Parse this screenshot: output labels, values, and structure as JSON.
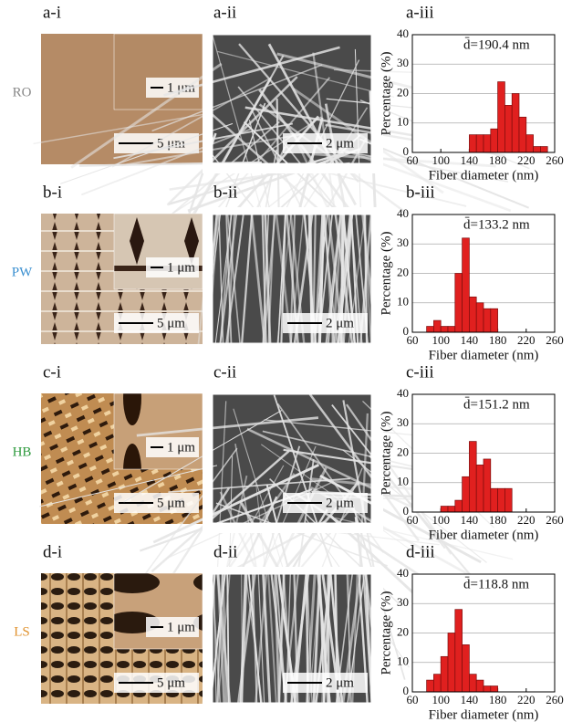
{
  "rows": [
    {
      "row_label": "RO",
      "label_color": "#888888",
      "panels": [
        {
          "label": "a-i",
          "inset_scale": "1 μm",
          "scale": "5 μm"
        },
        {
          "label": "a-ii",
          "scale": "2 μm"
        }
      ]
    },
    {
      "row_label": "PW",
      "label_color": "#3a8fd0",
      "panels": [
        {
          "label": "b-i",
          "inset_scale": "1 μm",
          "scale": "5 μm"
        },
        {
          "label": "b-ii",
          "scale": "2 μm"
        }
      ]
    },
    {
      "row_label": "HB",
      "label_color": "#2e9a3e",
      "panels": [
        {
          "label": "c-i",
          "inset_scale": "1 μm",
          "scale": "5 μm"
        },
        {
          "label": "c-ii",
          "scale": "2 μm"
        }
      ]
    },
    {
      "row_label": "LS",
      "label_color": "#e0922e",
      "panels": [
        {
          "label": "d-i",
          "inset_scale": "1 μm",
          "scale": "5 μm"
        },
        {
          "label": "d-ii",
          "scale": "2 μm"
        }
      ]
    }
  ],
  "chart_data": [
    {
      "type": "histogram",
      "panel_label": "a-iii",
      "annotation": "d̄=190.4 nm",
      "xlabel": "Fiber diameter (nm)",
      "ylabel": "Percentage (%)",
      "bins": [
        140,
        150,
        160,
        170,
        180,
        190,
        200,
        210,
        220,
        230,
        240,
        250
      ],
      "values": [
        6,
        6,
        6,
        8,
        24,
        16,
        20,
        12,
        6,
        2,
        2
      ],
      "color": "#e0201f",
      "xlim": [
        60,
        260
      ],
      "xticks": [
        60,
        100,
        140,
        180,
        220,
        260
      ],
      "ylim": [
        0,
        40
      ],
      "yticks": [
        0,
        10,
        20,
        30,
        40
      ],
      "grid": true
    },
    {
      "type": "histogram",
      "panel_label": "b-iii",
      "annotation": "d̄=133.2 nm",
      "xlabel": "Fiber diameter (nm)",
      "ylabel": "Percentage (%)",
      "bins": [
        80,
        90,
        100,
        110,
        120,
        130,
        140,
        150,
        160,
        170,
        180
      ],
      "values": [
        2,
        4,
        2,
        2,
        20,
        32,
        12,
        10,
        8,
        8
      ],
      "color": "#e0201f",
      "xlim": [
        60,
        260
      ],
      "xticks": [
        60,
        100,
        140,
        180,
        220,
        260
      ],
      "ylim": [
        0,
        40
      ],
      "yticks": [
        0,
        10,
        20,
        30,
        40
      ],
      "grid": true
    },
    {
      "type": "histogram",
      "panel_label": "c-iii",
      "annotation": "d̄=151.2 nm",
      "xlabel": "Fiber diameter (nm)",
      "ylabel": "Percentage (%)",
      "bins": [
        100,
        110,
        120,
        130,
        140,
        150,
        160,
        170,
        180,
        190,
        200
      ],
      "values": [
        2,
        2,
        4,
        12,
        24,
        16,
        18,
        8,
        8,
        8
      ],
      "color": "#e0201f",
      "xlim": [
        60,
        260
      ],
      "xticks": [
        60,
        100,
        140,
        180,
        220,
        260
      ],
      "ylim": [
        0,
        40
      ],
      "yticks": [
        0,
        10,
        20,
        30,
        40
      ],
      "grid": true
    },
    {
      "type": "histogram",
      "panel_label": "d-iii",
      "annotation": "d̄=118.8 nm",
      "xlabel": "Fiber diameter (nm)",
      "ylabel": "Percentage (%)",
      "bins": [
        80,
        90,
        100,
        110,
        120,
        130,
        140,
        150,
        160,
        170,
        180
      ],
      "values": [
        4,
        6,
        12,
        20,
        28,
        16,
        6,
        4,
        2,
        2
      ],
      "color": "#e0201f",
      "xlim": [
        60,
        260
      ],
      "xticks": [
        60,
        100,
        140,
        180,
        220,
        260
      ],
      "ylim": [
        0,
        40
      ],
      "yticks": [
        0,
        10,
        20,
        30,
        40
      ],
      "grid": true
    }
  ]
}
